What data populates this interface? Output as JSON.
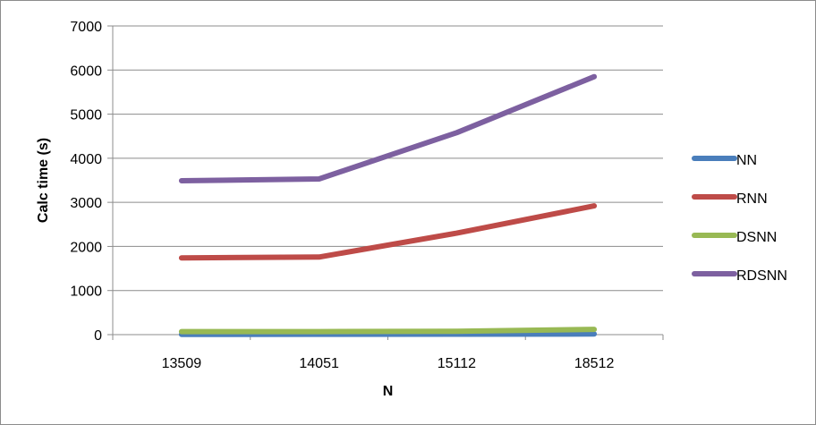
{
  "chart_data": {
    "type": "line",
    "title": "",
    "xlabel": "N",
    "ylabel": "Calc time (s)",
    "categories": [
      "13509",
      "14051",
      "15112",
      "18512"
    ],
    "ylim": [
      0,
      7000
    ],
    "yticks": [
      0,
      1000,
      2000,
      3000,
      4000,
      5000,
      6000,
      7000
    ],
    "grid": "horizontal",
    "legend_position": "right",
    "series": [
      {
        "name": "NN",
        "color": "#4a7ebb",
        "values": [
          5,
          8,
          10,
          15
        ]
      },
      {
        "name": "RNN",
        "color": "#be4b48",
        "values": [
          1740,
          1760,
          2300,
          2920
        ]
      },
      {
        "name": "DSNN",
        "color": "#98b954",
        "values": [
          70,
          70,
          75,
          120
        ]
      },
      {
        "name": "RDSNN",
        "color": "#7d60a0",
        "values": [
          3490,
          3530,
          4580,
          5850
        ]
      }
    ]
  }
}
